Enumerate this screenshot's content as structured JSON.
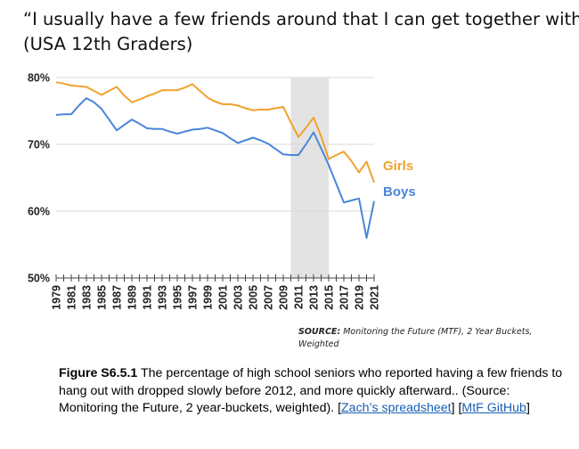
{
  "title": {
    "line1": "“I usually have a few friends around that I can get together with”",
    "line2": "(USA 12th Graders)"
  },
  "chart_data": {
    "type": "line",
    "x": [
      1979,
      1980,
      1981,
      1982,
      1983,
      1984,
      1985,
      1986,
      1987,
      1988,
      1989,
      1990,
      1991,
      1992,
      1993,
      1994,
      1995,
      1996,
      1997,
      1998,
      1999,
      2000,
      2001,
      2002,
      2003,
      2004,
      2005,
      2006,
      2007,
      2008,
      2009,
      2010,
      2011,
      2012,
      2013,
      2014,
      2015,
      2016,
      2017,
      2018,
      2019,
      2020,
      2021
    ],
    "x_ticks": [
      "1979",
      "1981",
      "1983",
      "1985",
      "1987",
      "1989",
      "1991",
      "1993",
      "1995",
      "1997",
      "1999",
      "2001",
      "2003",
      "2005",
      "2007",
      "2009",
      "2011",
      "2013",
      "2015",
      "2017",
      "2019",
      "2021"
    ],
    "series": [
      {
        "name": "Girls",
        "color": "#F0A22E",
        "values": [
          79.3,
          79.1,
          78.8,
          78.7,
          78.6,
          78.0,
          77.4,
          78.0,
          78.6,
          77.3,
          76.3,
          76.7,
          77.2,
          77.6,
          78.1,
          78.1,
          78.1,
          78.5,
          79.0,
          78.0,
          77.0,
          76.4,
          76.0,
          76.0,
          75.8,
          75.4,
          75.1,
          75.2,
          75.2,
          75.4,
          75.6,
          73.3,
          71.1,
          72.5,
          74.0,
          71.2,
          67.8,
          68.4,
          68.9,
          67.5,
          65.8,
          67.4,
          64.3
        ]
      },
      {
        "name": "Boys",
        "color": "#4A86D8",
        "values": [
          74.4,
          74.5,
          74.5,
          75.8,
          76.9,
          76.3,
          75.3,
          73.7,
          72.1,
          72.9,
          73.7,
          73.1,
          72.4,
          72.3,
          72.3,
          71.9,
          71.6,
          71.9,
          72.2,
          72.3,
          72.5,
          72.1,
          71.7,
          70.9,
          70.2,
          70.6,
          71.0,
          70.6,
          70.1,
          69.3,
          68.5,
          68.4,
          68.4,
          70.0,
          71.8,
          69.4,
          66.9,
          64.1,
          61.3,
          61.6,
          61.9,
          56.0,
          61.5
        ]
      }
    ],
    "y_ticks": [
      "50%",
      "60%",
      "70%",
      "80%"
    ],
    "ylim": [
      50,
      80
    ],
    "xlim": [
      1979,
      2021
    ],
    "shaded_region": [
      2010,
      2015
    ],
    "shaded_color": "#E3E3E3",
    "grid": "horizontal"
  },
  "source": {
    "label": "SOURCE:",
    "text": " Monitoring the Future (MTF), 2 Year Buckets, Weighted"
  },
  "caption": {
    "figure_label": "Figure S6.5.1",
    "text": " The percentage of high school seniors who reported having a few friends to hang out with dropped slowly before 2012, and more quickly afterward.. (Source: Monitoring the Future, 2 year-buckets, weighted).  [",
    "link1": "Zach’s spreadsheet",
    "mid": "] [",
    "link2": "MtF GitHub",
    "end": "]"
  }
}
